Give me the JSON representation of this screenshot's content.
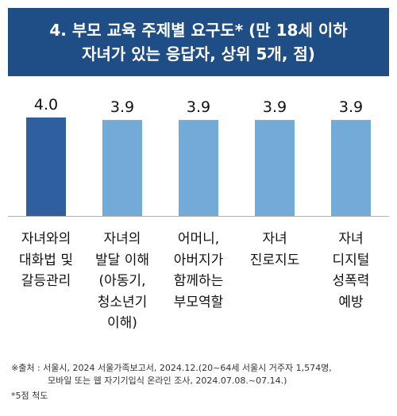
{
  "title": {
    "line1": "4. 부모 교육 주제별 요구도* (만 18세 이하",
    "line2": "자녀가 있는 응답자, 상위 5개, 점)"
  },
  "chart_data": {
    "type": "bar",
    "title": "4. 부모 교육 주제별 요구도* (만 18세 이하 자녀가 있는 응답자, 상위 5개, 점)",
    "categories": [
      [
        "자녀와의",
        "대화법 및",
        "갈등관리"
      ],
      [
        "자녀의",
        "발달 이해",
        "(아동기,",
        "청소년기",
        "이해)"
      ],
      [
        "어머니,",
        "아버지가",
        "함께하는",
        "부모역할"
      ],
      [
        "자녀",
        "진로지도"
      ],
      [
        "자녀",
        "디지털",
        "성폭력",
        "예방"
      ]
    ],
    "values": [
      4.0,
      3.9,
      3.9,
      3.9,
      3.9
    ],
    "value_labels": [
      "4.0",
      "3.9",
      "3.9",
      "3.9",
      "3.9"
    ],
    "highlight_index": 0,
    "colors": {
      "highlight": "#2f5f9e",
      "default": "#72aad8",
      "axis": "#b0b0b0",
      "title_bg": "#1f4e86"
    },
    "ylim": [
      0,
      4.0
    ],
    "grid": false,
    "legend": "none"
  },
  "footnotes": {
    "source_line1": "※출처 : 서울시, 2024 서울가족보고서, 2024.12.(20~64세 서울시 거주자 1,574명,",
    "source_line2": "모바일 또는 웹 자기기입식 온라인 조사, 2024.07.08.~07.14.)",
    "scale": "*5점 척도"
  }
}
